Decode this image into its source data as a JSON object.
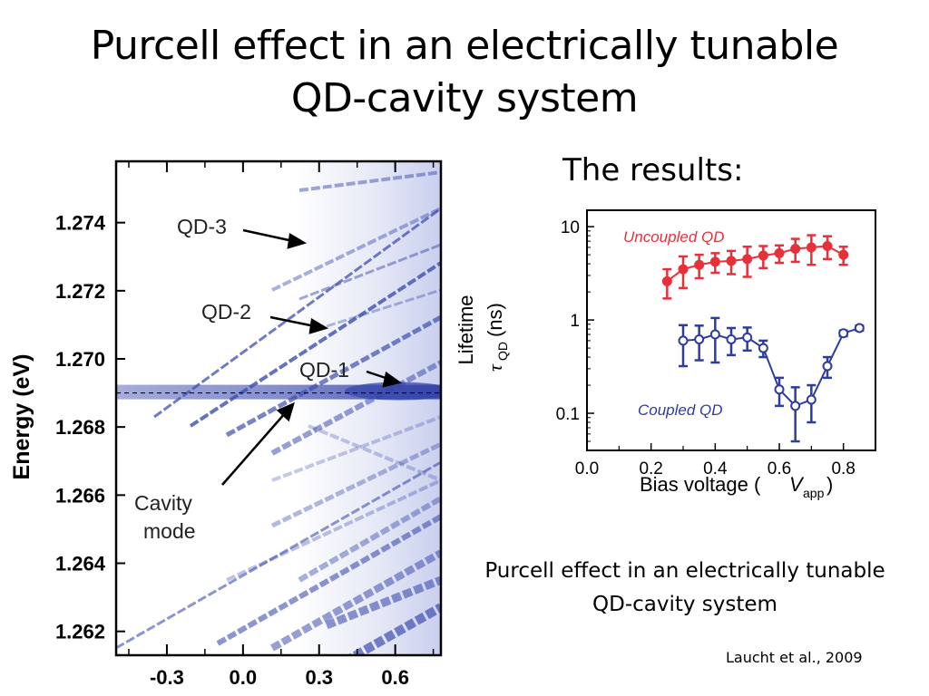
{
  "slide": {
    "title_line1": "Purcell effect in an electrically tunable",
    "title_line2": "QD-cavity system",
    "results_heading": "The results:",
    "caption": "Purcell effect in an electrically tunable QD-cavity system",
    "citation": "Laucht et al., 2009"
  },
  "chart_data": [
    {
      "type": "heatmap",
      "title": "",
      "ylabel": "Energy (eV)",
      "xlabel": "",
      "x_ticks": [
        "-0.3",
        "0.0",
        "0.3",
        "0.6"
      ],
      "x_tick_values": [
        -0.3,
        0.0,
        0.3,
        0.6
      ],
      "y_ticks": [
        "1.274",
        "1.272",
        "1.270",
        "1.268",
        "1.266",
        "1.264",
        "1.262"
      ],
      "y_tick_values": [
        1.274,
        1.272,
        1.27,
        1.268,
        1.266,
        1.264,
        1.262
      ],
      "xlim": [
        -0.5,
        0.78
      ],
      "ylim": [
        1.2613,
        1.2758
      ],
      "cavity_mode_energy": 1.269,
      "annotations": [
        {
          "label": "QD-3"
        },
        {
          "label": "QD-2"
        },
        {
          "label": "QD-1"
        },
        {
          "label_line1": "Cavity",
          "label_line2": "mode"
        }
      ],
      "colors": {
        "trace": "#3f4fb0",
        "frame": "#000000"
      }
    },
    {
      "type": "scatter",
      "xlabel_main": "Bias voltage (",
      "xlabel_italic": "V",
      "xlabel_sub": "app",
      "xlabel_end": ")",
      "ylabel_line1": "Lifetime",
      "ylabel_tau": "τ",
      "ylabel_sub": "QD",
      "ylabel_unit": "(ns)",
      "y_scale": "log",
      "ylim": [
        0.04,
        15
      ],
      "xlim": [
        0.0,
        0.9
      ],
      "x_ticks": [
        "0.0",
        "0.2",
        "0.4",
        "0.6",
        "0.8"
      ],
      "x_tick_values": [
        0.0,
        0.2,
        0.4,
        0.6,
        0.8
      ],
      "y_ticks": [
        "10",
        "1",
        "0.1"
      ],
      "y_tick_values": [
        10,
        1,
        0.1
      ],
      "series": [
        {
          "name": "Uncoupled QD",
          "color": "#e8303a",
          "marker": "filled-circle",
          "x": [
            0.25,
            0.3,
            0.35,
            0.4,
            0.45,
            0.5,
            0.55,
            0.6,
            0.65,
            0.7,
            0.75,
            0.8
          ],
          "y": [
            2.6,
            3.5,
            3.9,
            4.2,
            4.3,
            4.5,
            4.9,
            5.2,
            5.8,
            6.0,
            6.2,
            5.0
          ],
          "err": [
            0.9,
            1.3,
            1.1,
            1.0,
            1.2,
            1.6,
            1.3,
            1.1,
            1.6,
            2.1,
            1.7,
            1.1
          ]
        },
        {
          "name": "Coupled QD",
          "color": "#2e3d9c",
          "marker": "open-circle",
          "x": [
            0.3,
            0.35,
            0.4,
            0.45,
            0.5,
            0.55,
            0.6,
            0.65,
            0.7,
            0.75,
            0.8,
            0.85
          ],
          "y": [
            0.6,
            0.62,
            0.7,
            0.62,
            0.65,
            0.5,
            0.18,
            0.12,
            0.14,
            0.32,
            0.72,
            0.82
          ],
          "err": [
            0.28,
            0.25,
            0.35,
            0.2,
            0.18,
            0.1,
            0.06,
            0.07,
            0.06,
            0.08,
            0.05,
            0.05
          ]
        }
      ]
    }
  ]
}
